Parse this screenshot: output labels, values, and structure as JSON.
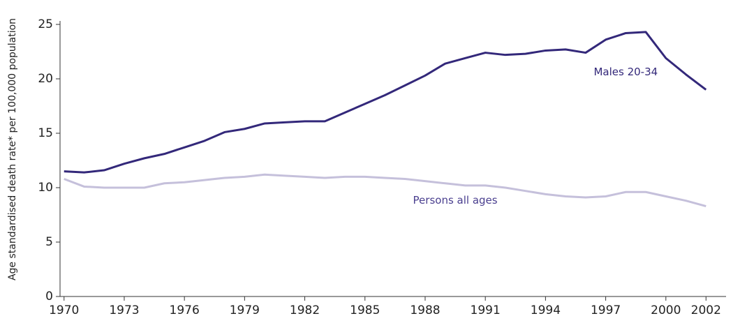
{
  "chart_data": {
    "type": "line",
    "y_label": "Age standardised death rate* per 100,000 population",
    "x": [
      1970,
      1971,
      1972,
      1973,
      1974,
      1975,
      1976,
      1977,
      1978,
      1979,
      1980,
      1981,
      1982,
      1983,
      1984,
      1985,
      1986,
      1987,
      1988,
      1989,
      1990,
      1991,
      1992,
      1993,
      1994,
      1995,
      1996,
      1997,
      1998,
      1999,
      2000,
      2001,
      2002
    ],
    "series": [
      {
        "name": "Males 20-34",
        "color": "#33287a",
        "width": 3,
        "values": [
          11.5,
          11.4,
          11.6,
          12.2,
          12.7,
          13.1,
          13.7,
          14.3,
          15.1,
          15.4,
          15.9,
          16.0,
          16.1,
          16.1,
          16.9,
          17.7,
          18.5,
          19.4,
          20.3,
          21.4,
          21.9,
          22.4,
          22.2,
          22.3,
          22.6,
          22.7,
          22.4,
          23.6,
          24.2,
          24.3,
          21.9,
          20.4,
          19.0
        ]
      },
      {
        "name": "Persons all ages",
        "color": "#c5c0db",
        "width": 3,
        "values": [
          10.8,
          10.1,
          10.0,
          10.0,
          10.0,
          10.4,
          10.5,
          10.7,
          10.9,
          11.0,
          11.2,
          11.1,
          11.0,
          10.9,
          11.0,
          11.0,
          10.9,
          10.8,
          10.6,
          10.4,
          10.2,
          10.2,
          10.0,
          9.7,
          9.4,
          9.2,
          9.1,
          9.2,
          9.6,
          9.6,
          9.2,
          8.8,
          8.3
        ]
      }
    ],
    "xlim": [
      1969.8,
      2003
    ],
    "xticks": [
      1970,
      1973,
      1976,
      1979,
      1982,
      1985,
      1988,
      1991,
      1994,
      1997,
      2000,
      2002
    ],
    "ylim": [
      0,
      25
    ],
    "yticks": [
      0,
      5,
      10,
      15,
      20,
      25
    ],
    "annotations": [
      {
        "text": "Males 20-34",
        "x": 1998,
        "y": 20.6
      },
      {
        "text": "Persons all ages",
        "x": 1989.5,
        "y": 8.8
      }
    ]
  }
}
